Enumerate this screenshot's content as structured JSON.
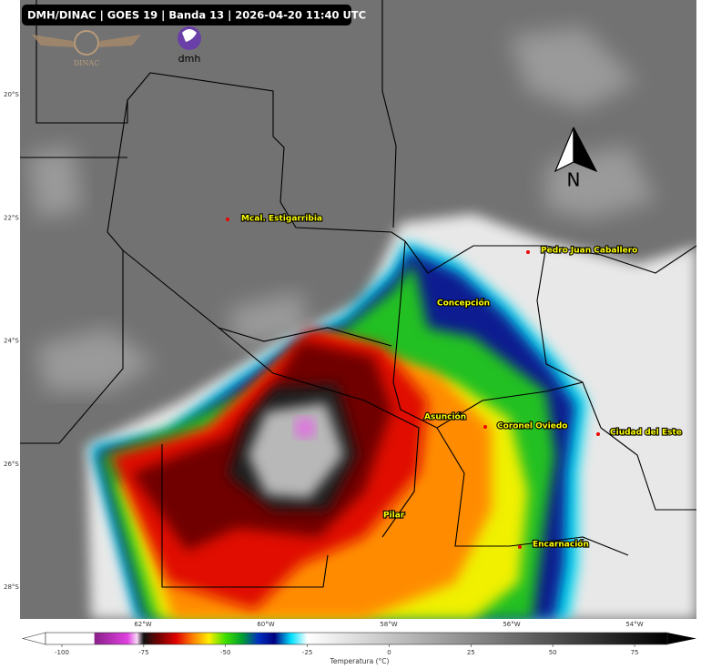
{
  "header": {
    "title": "DMH/DINAC | GOES 19 | Banda 13 | 2026-04-20 11:40 UTC"
  },
  "logos": {
    "left": "DINAC",
    "right": "dmh"
  },
  "north_arrow": "N",
  "cities": [
    "Mcal. Estigarribia",
    "Pedro Juan Caballero",
    "Concepción",
    "Asunción",
    "Coronel Oviedo",
    "Ciudad del Este",
    "Pilar",
    "Encarnación"
  ],
  "map": {
    "lat_labels": [
      "20°S",
      "22°S",
      "24°S",
      "26°S",
      "28°S"
    ],
    "lon_labels": [
      "62°W",
      "60°W",
      "58°W",
      "56°W",
      "54°W"
    ]
  },
  "colorbar": {
    "label": "Temperatura (°C)",
    "lim": [
      -105,
      85
    ],
    "ticks": [
      -100,
      -75,
      -50,
      -25,
      0,
      25,
      50,
      75
    ]
  }
}
